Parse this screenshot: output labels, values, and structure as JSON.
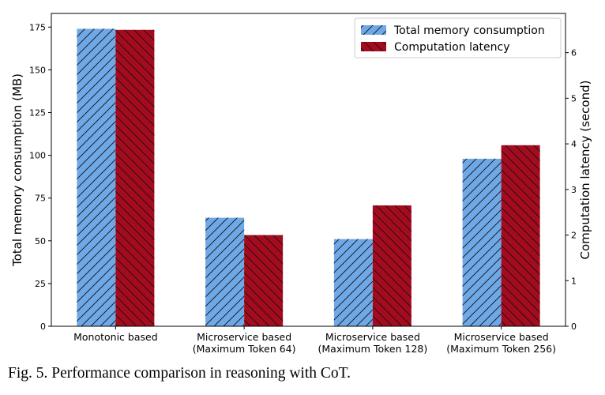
{
  "chart_data": {
    "type": "bar",
    "categories": [
      [
        "Monotonic based"
      ],
      [
        "Microservice based",
        "(Maximum Token 64)"
      ],
      [
        "Microservice based",
        "(Maximum Token 128)"
      ],
      [
        "Microservice based",
        "(Maximum Token 256)"
      ]
    ],
    "series": [
      {
        "name": "Total memory consumption",
        "axis": "left",
        "color": "#6fa8e6",
        "hatch": "forward-diagonal",
        "values": [
          174,
          63.5,
          51,
          98
        ]
      },
      {
        "name": "Computation latency",
        "axis": "right",
        "color": "#a50b1e",
        "hatch": "back-diagonal",
        "values": [
          6.5,
          2.0,
          2.65,
          3.97
        ]
      }
    ],
    "ylabel_left": "Total memory consumption (MB)",
    "ylabel_right": "Computation latency (second)",
    "ylim_left": [
      0,
      183
    ],
    "ylim_right": [
      0,
      6.86
    ],
    "yticks_left": [
      0,
      25,
      50,
      75,
      100,
      125,
      150,
      175
    ],
    "yticks_right": [
      0,
      1,
      2,
      3,
      4,
      5,
      6
    ],
    "legend_position": "top-right",
    "grid": false
  },
  "caption": "Fig. 5.  Performance comparison in reasoning with CoT."
}
